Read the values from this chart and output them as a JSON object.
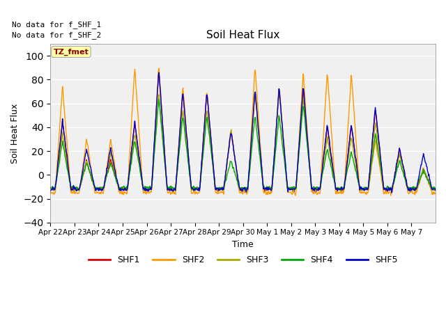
{
  "title": "Soil Heat Flux",
  "ylabel": "Soil Heat Flux",
  "xlabel": "Time",
  "ylim": [
    -40,
    110
  ],
  "yticks": [
    -40,
    -20,
    0,
    20,
    40,
    60,
    80,
    100
  ],
  "background_color": "#ffffff",
  "plot_bg_color": "#f0f0f0",
  "no_data_text": [
    "No data for f_SHF_1",
    "No data for f_SHF_2"
  ],
  "tz_label": "TZ_fmet",
  "legend_entries": [
    "SHF1",
    "SHF2",
    "SHF3",
    "SHF4",
    "SHF5"
  ],
  "legend_colors": [
    "#dd0000",
    "#ff9900",
    "#aaaa00",
    "#00aa00",
    "#0000cc"
  ],
  "x_tick_labels": [
    "Apr 22",
    "Apr 23",
    "Apr 24",
    "Apr 25",
    "Apr 26",
    "Apr 27",
    "Apr 28",
    "Apr 29",
    "Apr 30",
    "May 1",
    "May 2",
    "May 3",
    "May 4",
    "May 5",
    "May 6",
    "May 7"
  ],
  "line_width": 1.0,
  "shf1_color": "#dd0000",
  "shf2_color": "#ff9900",
  "shf3_color": "#aaaa00",
  "shf4_color": "#00aa00",
  "shf5_color": "#0000cc",
  "day_peaks_shf1": [
    45,
    12,
    13,
    44,
    88,
    70,
    70,
    37,
    71,
    72,
    73,
    41,
    42,
    55,
    22,
    5
  ],
  "day_peaks_shf2": [
    75,
    30,
    30,
    91,
    92,
    75,
    71,
    38,
    91,
    75,
    86,
    87,
    85,
    30,
    22,
    5
  ],
  "day_peaks_shf3": [
    35,
    12,
    18,
    35,
    68,
    55,
    55,
    38,
    70,
    72,
    65,
    32,
    32,
    45,
    18,
    5
  ],
  "day_peaks_shf4": [
    28,
    10,
    10,
    30,
    65,
    50,
    50,
    12,
    50,
    50,
    60,
    22,
    20,
    35,
    12,
    3
  ],
  "day_peaks_shf5": [
    46,
    22,
    22,
    45,
    89,
    70,
    70,
    37,
    72,
    73,
    75,
    42,
    43,
    57,
    22,
    18
  ],
  "night_base": -12,
  "pts_per_day": 48
}
